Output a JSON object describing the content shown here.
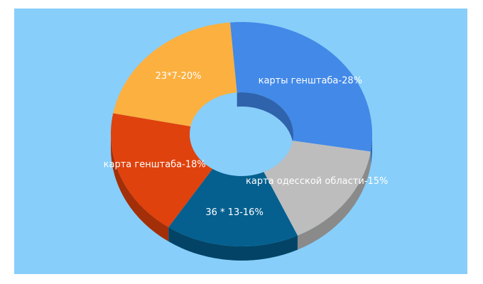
{
  "chart_data": {
    "type": "pie",
    "style": "3d-donut",
    "slices": [
      {
        "label": "карты генштаба-28%",
        "value": 28,
        "color": "#4289e8",
        "side": "#2f63ab"
      },
      {
        "label": "карта одесской области-15%",
        "value": 15,
        "color": "#bdbdbd",
        "side": "#8a8a8a"
      },
      {
        "label": "36 * 13-16%",
        "value": 16,
        "color": "#05608f",
        "side": "#034466"
      },
      {
        "label": "карта генштаба-18%",
        "value": 18,
        "color": "#e0420d",
        "side": "#a32f08"
      },
      {
        "label": "23*7-20%",
        "value": 20,
        "color": "#fbb040",
        "side": "#c5822a"
      }
    ],
    "background": "#87cefa"
  }
}
